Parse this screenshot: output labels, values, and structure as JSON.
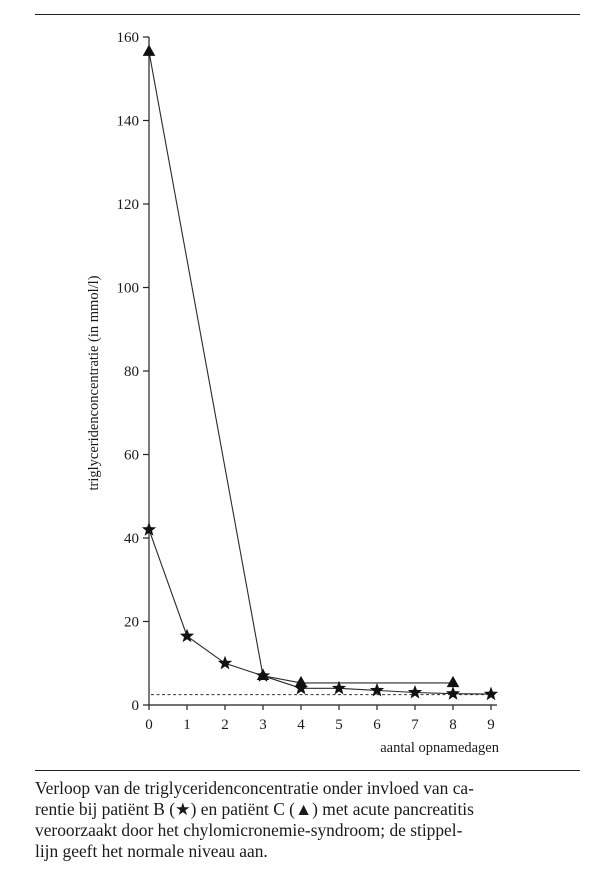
{
  "chart_data": {
    "type": "line",
    "x_label": "aantal opnamedagen",
    "y_label": "triglyceridenconcentratie (in mmol/l)",
    "x_ticks": [
      "0",
      "1",
      "2",
      "3",
      "4",
      "5",
      "6",
      "7",
      "8",
      "9"
    ],
    "y_ticks": [
      "0",
      "20",
      "40",
      "60",
      "80",
      "100",
      "120",
      "140",
      "160"
    ],
    "xlim": [
      0,
      9
    ],
    "ylim": [
      0,
      160
    ],
    "grid": false,
    "series": [
      {
        "name": "patiënt B",
        "marker": "star",
        "x": [
          0,
          1,
          2,
          3,
          4,
          5,
          6,
          7,
          8,
          9
        ],
        "y": [
          42,
          16.5,
          10,
          7,
          4,
          4,
          3.5,
          3,
          2.7,
          2.6
        ]
      },
      {
        "name": "patiënt C",
        "marker": "triangle",
        "x": [
          0,
          3,
          4,
          8
        ],
        "y": [
          156.5,
          7,
          5.3,
          5.3
        ]
      }
    ],
    "reference_line": {
      "style": "dashed",
      "y": 2.5
    }
  },
  "caption": {
    "lines": [
      "Verloop van de triglyceridenconcentratie onder invloed van ca-",
      "rentie bij patiënt B (★) en patiënt C (▲) met acute pancreatitis",
      "veroorzaakt door het chylomicronemie-syndroom; de stippel-",
      "lijn geeft het normale niveau aan."
    ]
  }
}
